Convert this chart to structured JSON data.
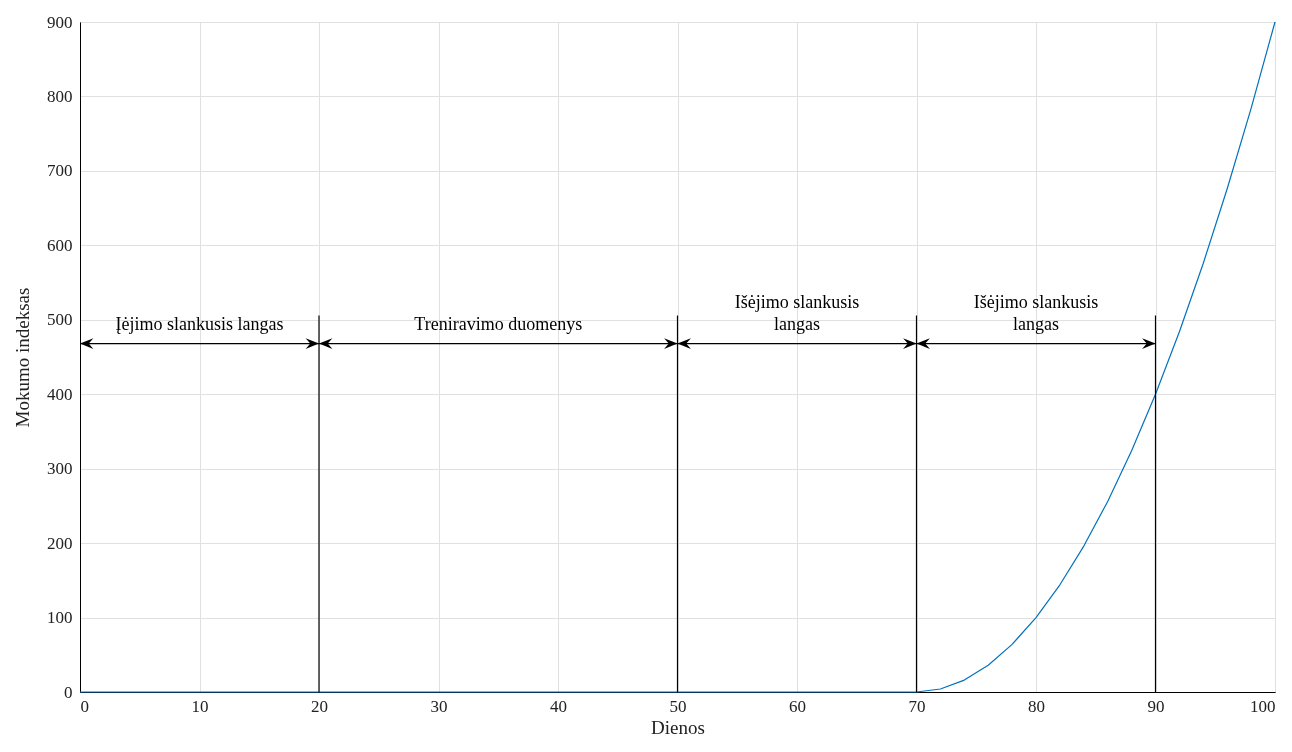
{
  "chart_data": {
    "type": "line",
    "xlabel": "Dienos",
    "ylabel": "Mokumo indeksas",
    "x": [
      0,
      70,
      72,
      74,
      76,
      78,
      80,
      82,
      84,
      86,
      88,
      90,
      92,
      94,
      96,
      98,
      100
    ],
    "series": [
      {
        "color": "#0072bd",
        "values": [
          0,
          0,
          4,
          16,
          36,
          64,
          100,
          144,
          196,
          256,
          324,
          400,
          484,
          576,
          676,
          784,
          900
        ]
      }
    ],
    "xlim": [
      0,
      100
    ],
    "xticks": [
      0,
      10,
      20,
      30,
      40,
      50,
      60,
      70,
      80,
      90,
      100
    ],
    "ylim": [
      0,
      900
    ],
    "yticks": [
      0,
      100,
      200,
      300,
      400,
      500,
      600,
      700,
      800,
      900
    ],
    "grid": true,
    "marker": "none",
    "line_style": "solid",
    "ref_lines": [
      {
        "axis": "x",
        "value": 20
      },
      {
        "axis": "x",
        "value": 50
      },
      {
        "axis": "x",
        "value": 70
      },
      {
        "axis": "x",
        "value": 90
      }
    ],
    "annotations": [
      "Įėjimo slankusis langas",
      "Treniravimo duomenys",
      "Išėjimo slankusis\nlangas",
      "Išėjimo slankusis\nlangas"
    ]
  }
}
